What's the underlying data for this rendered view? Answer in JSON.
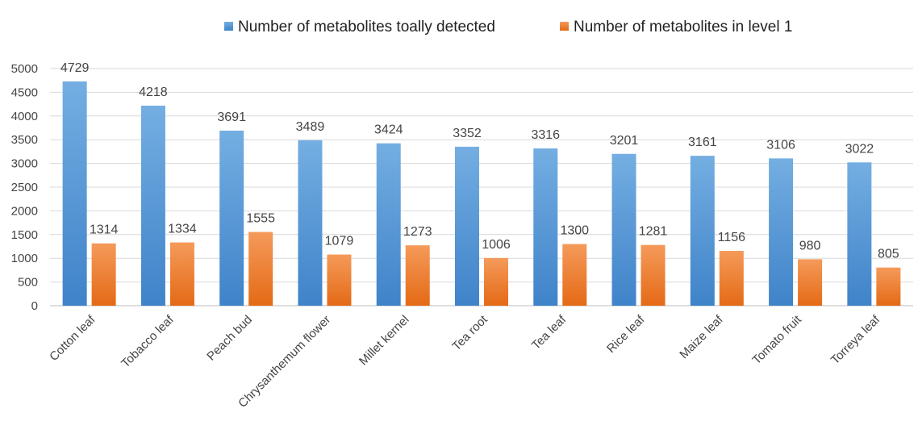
{
  "chart_data": {
    "type": "bar",
    "categories": [
      "Cotton leaf",
      "Tobacco leaf",
      "Peach bud",
      "Chrysanthemum flower",
      "Millet kernel",
      "Tea root",
      "Tea leaf",
      "Rice leaf",
      "Maize leaf",
      "Tomato fruit",
      "Torreya leaf"
    ],
    "series": [
      {
        "name": "Number of metabolites toally detected",
        "values": [
          4729,
          4218,
          3691,
          3489,
          3424,
          3352,
          3316,
          3201,
          3161,
          3106,
          3022
        ],
        "color": "#5b9bd5"
      },
      {
        "name": "Number of metabolites in level 1",
        "values": [
          1314,
          1334,
          1555,
          1079,
          1273,
          1006,
          1300,
          1281,
          1156,
          980,
          805
        ],
        "color": "#ed7d31"
      }
    ],
    "ylim": [
      0,
      5000
    ],
    "yticks": [
      0,
      500,
      1000,
      1500,
      2000,
      2500,
      3000,
      3500,
      4000,
      4500,
      5000
    ],
    "grid": true,
    "legend": "top-center",
    "data_labels": true
  }
}
